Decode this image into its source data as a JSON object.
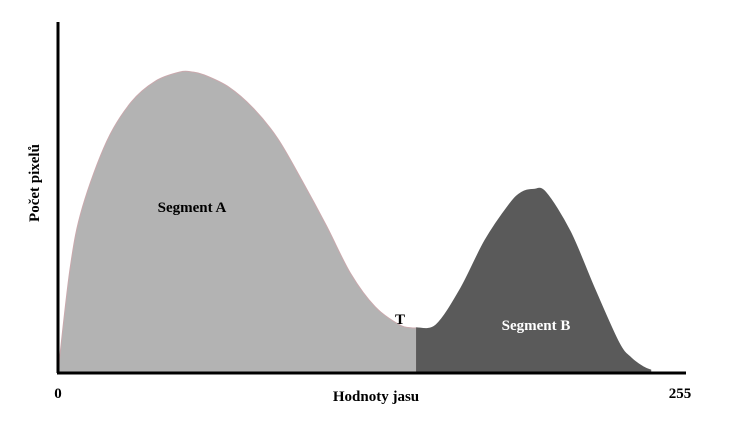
{
  "chart_data": {
    "type": "area",
    "title": "",
    "xlabel": "Hodnoty jasu",
    "ylabel": "Počet pixelů",
    "x_tick_labels": [
      "0",
      "255"
    ],
    "xlim": [
      0,
      255
    ],
    "ylim": [
      0,
      100
    ],
    "grid": false,
    "threshold": {
      "label": "T",
      "x": 147
    },
    "series": [
      {
        "name": "Segment A",
        "color": "#b3b3b3",
        "x": [
          0,
          5,
          10,
          20,
          30,
          40,
          50,
          55,
          60,
          70,
          80,
          90,
          100,
          110,
          120,
          130,
          140,
          145,
          147
        ],
        "y": [
          0,
          35,
          55,
          77,
          90,
          97,
          100,
          100,
          99,
          95,
          88,
          78,
          64,
          49,
          33,
          22,
          16,
          15,
          15
        ]
      },
      {
        "name": "Segment B",
        "color": "#5a5a5a",
        "x": [
          147,
          155,
          165,
          175,
          185,
          190,
          195,
          200,
          210,
          220,
          230,
          235,
          240,
          243
        ],
        "y": [
          15,
          16,
          28,
          44,
          56,
          60,
          61,
          60,
          47,
          28,
          10,
          5,
          2,
          1
        ]
      }
    ]
  }
}
